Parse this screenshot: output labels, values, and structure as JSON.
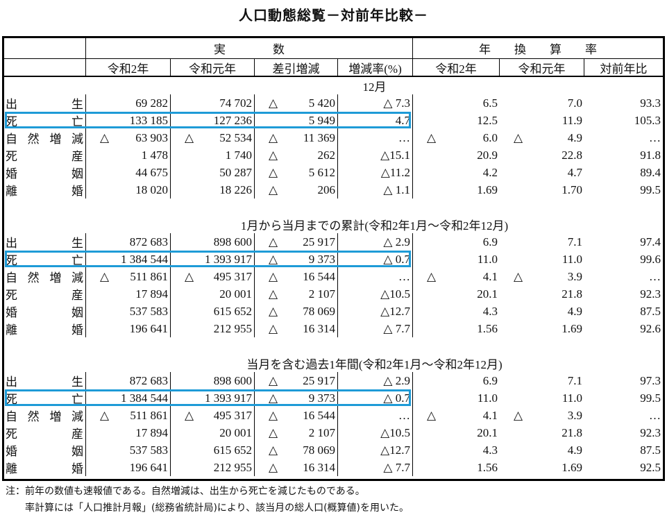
{
  "title": "人口動態総覧－対前年比較－",
  "header": {
    "group_actual": "実　　　　数",
    "group_rate": "年　　換　　算　　率",
    "columns": [
      "令和2年",
      "令和元年",
      "差引増減",
      "増減率(%)",
      "令和2年",
      "令和元年",
      "対前年比"
    ]
  },
  "sections": [
    {
      "heading": "12月",
      "rows": [
        {
          "label": "出生",
          "values": [
            "69 282",
            "74 702",
            "△ 5 420",
            "△ 7.3",
            "6.5",
            "7.0",
            "93.3"
          ]
        },
        {
          "label": "死亡",
          "highlight": true,
          "values": [
            "133 185",
            "127 236",
            "5 949",
            "4.7",
            "12.5",
            "11.9",
            "105.3"
          ]
        },
        {
          "label": "自然増減",
          "values": [
            "△ 63 903",
            "△ 52 534",
            "△ 11 369",
            "…",
            "△ 6.0",
            "△ 4.9",
            "…"
          ]
        },
        {
          "label": "死産",
          "values": [
            "1 478",
            "1 740",
            "△ 262",
            "△15.1",
            "20.9",
            "22.8",
            "91.8"
          ]
        },
        {
          "label": "婚姻",
          "values": [
            "44 675",
            "50 287",
            "△ 5 612",
            "△11.2",
            "4.2",
            "4.7",
            "89.4"
          ]
        },
        {
          "label": "離婚",
          "values": [
            "18 020",
            "18 226",
            "△ 206",
            "△ 1.1",
            "1.69",
            "1.70",
            "99.5"
          ]
        }
      ]
    },
    {
      "heading": "1月から当月までの累計(令和2年1月～令和2年12月)",
      "rows": [
        {
          "label": "出生",
          "values": [
            "872 683",
            "898 600",
            "△ 25 917",
            "△ 2.9",
            "6.9",
            "7.1",
            "97.4"
          ]
        },
        {
          "label": "死亡",
          "highlight": true,
          "values": [
            "1 384 544",
            "1 393 917",
            "△ 9 373",
            "△ 0.7",
            "11.0",
            "11.0",
            "99.6"
          ]
        },
        {
          "label": "自然増減",
          "values": [
            "△ 511 861",
            "△ 495 317",
            "△ 16 544",
            "…",
            "△ 4.1",
            "△ 3.9",
            "…"
          ]
        },
        {
          "label": "死産",
          "values": [
            "17 894",
            "20 001",
            "△ 2 107",
            "△10.5",
            "20.1",
            "21.8",
            "92.3"
          ]
        },
        {
          "label": "婚姻",
          "values": [
            "537 583",
            "615 652",
            "△ 78 069",
            "△12.7",
            "4.3",
            "4.9",
            "87.5"
          ]
        },
        {
          "label": "離婚",
          "values": [
            "196 641",
            "212 955",
            "△ 16 314",
            "△ 7.7",
            "1.56",
            "1.69",
            "92.6"
          ]
        }
      ]
    },
    {
      "heading": "当月を含む過去1年間(令和2年1月～令和2年12月)",
      "rows": [
        {
          "label": "出生",
          "values": [
            "872 683",
            "898 600",
            "△ 25 917",
            "△ 2.9",
            "6.9",
            "7.1",
            "97.3"
          ]
        },
        {
          "label": "死亡",
          "highlight": true,
          "values": [
            "1 384 544",
            "1 393 917",
            "△ 9 373",
            "△ 0.7",
            "11.0",
            "11.0",
            "99.5"
          ]
        },
        {
          "label": "自然増減",
          "values": [
            "△ 511 861",
            "△ 495 317",
            "△ 16 544",
            "…",
            "△ 4.1",
            "△ 3.9",
            "…"
          ]
        },
        {
          "label": "死産",
          "values": [
            "17 894",
            "20 001",
            "△ 2 107",
            "△10.5",
            "20.1",
            "21.8",
            "92.3"
          ]
        },
        {
          "label": "婚姻",
          "values": [
            "537 583",
            "615 652",
            "△ 78 069",
            "△12.7",
            "4.3",
            "4.9",
            "87.5"
          ]
        },
        {
          "label": "離婚",
          "values": [
            "196 641",
            "212 955",
            "△ 16 314",
            "△ 7.7",
            "1.56",
            "1.69",
            "92.5"
          ]
        }
      ]
    }
  ],
  "notes": [
    "注：前年の数値も速報値である。自然増減は、出生から死亡を減じたものである。",
    "　　率計算には「人口推計月報」(総務省統計局)により、該当月の総人口(概算値)を用いた。"
  ],
  "colors": {
    "highlight": "#1e9bd7",
    "rule": "#000000"
  }
}
